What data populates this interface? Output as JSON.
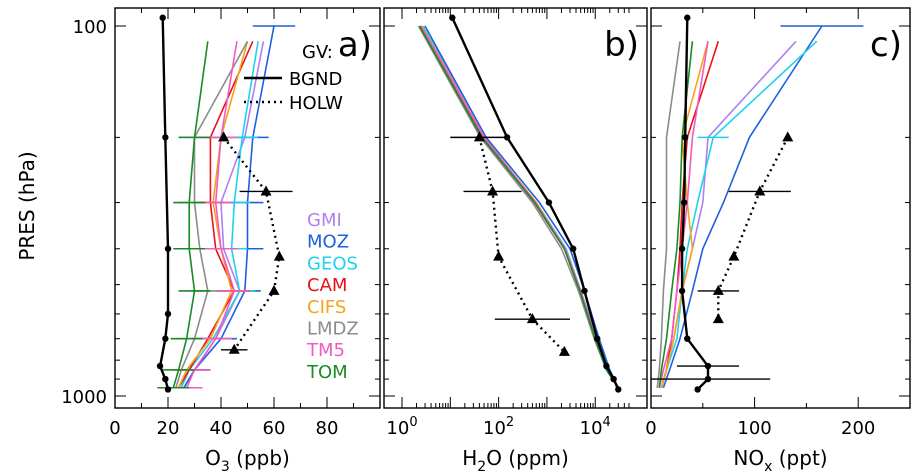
{
  "figure": {
    "ylabel": "PRES (hPa)",
    "y_ticks": [
      {
        "v": 100,
        "label": "100"
      },
      {
        "v": 1000,
        "label": "1000"
      }
    ],
    "ylim": [
      1000,
      100
    ],
    "y_scale": "log",
    "gv_label": "GV:",
    "line_legend": [
      {
        "label": "BGND",
        "style": "solid"
      },
      {
        "label": "HOLW",
        "style": "dotted"
      }
    ],
    "model_legend": [
      {
        "name": "GMI",
        "color": "#b27ff0"
      },
      {
        "name": "MOZ",
        "color": "#1f5fe0"
      },
      {
        "name": "GEOS",
        "color": "#1ed2ee"
      },
      {
        "name": "CAM",
        "color": "#e8121e"
      },
      {
        "name": "CIFS",
        "color": "#f6a21a"
      },
      {
        "name": "LMDZ",
        "color": "#8c8c8c"
      },
      {
        "name": "TM5",
        "color": "#f25bbd"
      },
      {
        "name": "TOM",
        "color": "#1a8a26"
      }
    ]
  },
  "chart_data": [
    {
      "type": "line",
      "panel_label": "a)",
      "xlabel_parts": [
        "O",
        "3",
        " (ppb)"
      ],
      "xlim": [
        0,
        100
      ],
      "x_scale": "linear",
      "x_ticks": [
        {
          "v": 0,
          "label": "0"
        },
        {
          "v": 20,
          "label": "20"
        },
        {
          "v": 40,
          "label": "40"
        },
        {
          "v": 60,
          "label": "60"
        },
        {
          "v": 80,
          "label": "80"
        }
      ],
      "x_minor": [
        10,
        30,
        50,
        70,
        90
      ],
      "gv_bgnd": {
        "pres": [
          95,
          200,
          400,
          600,
          700,
          830,
          900,
          960
        ],
        "x": [
          18,
          19,
          20,
          20,
          19,
          17,
          19,
          20
        ]
      },
      "gv_holw": {
        "pres": [
          200,
          280,
          420,
          520,
          750
        ],
        "x": [
          41,
          57,
          62,
          60,
          45
        ],
        "err": [
          0,
          10,
          0,
          0,
          5
        ]
      },
      "series": [
        {
          "name": "GMI",
          "color": "#b27ff0",
          "pres": [
            110,
            200,
            300,
            400,
            520,
            700,
            850,
            950
          ],
          "x": [
            56,
            49,
            40,
            41,
            47,
            38,
            30,
            26
          ],
          "err": [
            0,
            6,
            6,
            6,
            6,
            6,
            6,
            6
          ]
        },
        {
          "name": "MOZ",
          "color": "#1f5fe0",
          "pres": [
            100,
            200,
            300,
            400,
            520,
            700,
            850,
            950
          ],
          "x": [
            60,
            52,
            50,
            50,
            49,
            40,
            30,
            26
          ],
          "err": [
            8,
            6,
            6,
            6,
            6,
            6,
            6,
            6
          ]
        },
        {
          "name": "GEOS",
          "color": "#1ed2ee",
          "pres": [
            110,
            200,
            300,
            400,
            520,
            700,
            850,
            950
          ],
          "x": [
            54,
            48,
            45,
            44,
            47,
            37,
            28,
            25
          ],
          "err": [
            0,
            6,
            6,
            6,
            6,
            6,
            6,
            6
          ]
        },
        {
          "name": "CAM",
          "color": "#e8121e",
          "pres": [
            110,
            200,
            300,
            400,
            520,
            700,
            850,
            950
          ],
          "x": [
            52,
            36,
            36,
            38,
            45,
            35,
            28,
            24
          ],
          "err": [
            0,
            6,
            6,
            6,
            6,
            6,
            6,
            6
          ]
        },
        {
          "name": "CIFS",
          "color": "#f6a21a",
          "pres": [
            110,
            200,
            300,
            400,
            520,
            700,
            850,
            950
          ],
          "x": [
            50,
            40,
            37,
            40,
            44,
            36,
            27,
            24
          ],
          "err": [
            0,
            6,
            6,
            6,
            6,
            6,
            6,
            6
          ]
        },
        {
          "name": "LMDZ",
          "color": "#8c8c8c",
          "pres": [
            110,
            200,
            300,
            400,
            520,
            700,
            850,
            950
          ],
          "x": [
            50,
            30,
            30,
            32,
            35,
            30,
            25,
            23
          ],
          "err": [
            0,
            6,
            6,
            6,
            6,
            6,
            6,
            6
          ]
        },
        {
          "name": "TM5",
          "color": "#f25bbd",
          "pres": [
            110,
            200,
            300,
            400,
            520,
            700,
            850,
            950
          ],
          "x": [
            46,
            40,
            38,
            40,
            45,
            38,
            30,
            27
          ],
          "err": [
            0,
            6,
            6,
            6,
            6,
            6,
            6,
            6
          ]
        },
        {
          "name": "TOM",
          "color": "#1a8a26",
          "pres": [
            110,
            200,
            300,
            400,
            520,
            700,
            850,
            950
          ],
          "x": [
            35,
            30,
            28,
            28,
            30,
            27,
            24,
            22
          ],
          "err": [
            0,
            6,
            6,
            6,
            6,
            6,
            6,
            6
          ]
        }
      ]
    },
    {
      "type": "line",
      "panel_label": "b)",
      "xlabel_parts": [
        "H",
        "2",
        "O (ppm)"
      ],
      "xlim": [
        1,
        50000
      ],
      "x_scale": "log",
      "x_ticks": [
        {
          "v": 1,
          "base": "10",
          "exp": "0"
        },
        {
          "v": 100,
          "base": "10",
          "exp": "2"
        },
        {
          "v": 10000,
          "base": "10",
          "exp": "4"
        }
      ],
      "gv_bgnd": {
        "pres": [
          95,
          200,
          300,
          400,
          520,
          700,
          830,
          900,
          960
        ],
        "x": [
          11,
          150,
          1100,
          3500,
          6000,
          11000,
          17000,
          24000,
          30000
        ]
      },
      "gv_holw": {
        "pres": [
          200,
          280,
          420,
          620,
          760
        ],
        "x": [
          40,
          75,
          100,
          500,
          2300
        ],
        "err": [
          0.6,
          0.6,
          0,
          1,
          0
        ]
      },
      "series": [
        {
          "name": "GMI",
          "color": "#b27ff0",
          "pres": [
            100,
            200,
            300,
            400,
            520,
            700,
            850,
            950
          ],
          "x": [
            2.8,
            50,
            600,
            2500,
            5000,
            10000,
            18000,
            30000
          ]
        },
        {
          "name": "MOZ",
          "color": "#1f5fe0",
          "pres": [
            100,
            200,
            300,
            400,
            520,
            700,
            850,
            950
          ],
          "x": [
            3,
            55,
            700,
            3000,
            6000,
            12000,
            20000,
            30000
          ]
        },
        {
          "name": "GEOS",
          "color": "#1ed2ee",
          "pres": [
            100,
            200,
            300,
            400,
            520,
            700,
            850,
            950
          ],
          "x": [
            2.8,
            45,
            600,
            2500,
            5000,
            11000,
            19000,
            30000
          ]
        },
        {
          "name": "CAM",
          "color": "#e8121e",
          "pres": [
            100,
            200,
            300,
            400,
            520,
            700,
            850,
            950
          ],
          "x": [
            2.4,
            48,
            550,
            2300,
            4800,
            10000,
            18000,
            30000
          ]
        },
        {
          "name": "CIFS",
          "color": "#f6a21a",
          "pres": [
            100,
            200,
            300,
            400,
            520,
            700,
            850,
            950
          ],
          "x": [
            2.6,
            50,
            600,
            2400,
            5000,
            10000,
            18000,
            30000
          ]
        },
        {
          "name": "LMDZ",
          "color": "#8c8c8c",
          "pres": [
            100,
            200,
            300,
            400,
            520,
            700,
            850,
            950
          ],
          "x": [
            2.2,
            42,
            500,
            2000,
            4500,
            9500,
            17000,
            30000
          ]
        },
        {
          "name": "TM5",
          "color": "#f25bbd",
          "pres": [
            100,
            200,
            300,
            400,
            520,
            700,
            850,
            950
          ],
          "x": [
            2.5,
            50,
            580,
            2400,
            5000,
            10500,
            18000,
            30000
          ]
        },
        {
          "name": "TOM",
          "color": "#1a8a26",
          "pres": [
            100,
            200,
            300,
            400,
            520,
            700,
            850,
            950
          ],
          "x": [
            2.3,
            45,
            560,
            2300,
            4800,
            10000,
            17000,
            30000
          ]
        }
      ]
    },
    {
      "type": "line",
      "panel_label": "c)",
      "xlabel_parts": [
        "NO",
        "x",
        " (ppt)"
      ],
      "xlim": [
        0,
        250
      ],
      "x_scale": "linear",
      "x_ticks": [
        {
          "v": 0,
          "label": "0"
        },
        {
          "v": 100,
          "label": "100"
        },
        {
          "v": 200,
          "label": "200"
        }
      ],
      "x_minor": [
        50,
        150
      ],
      "gv_bgnd": {
        "pres": [
          95,
          200,
          300,
          400,
          520,
          700,
          830,
          900,
          960
        ],
        "x": [
          35,
          33,
          32,
          30,
          30,
          35,
          55,
          55,
          45
        ],
        "err": [
          0,
          0,
          0,
          0,
          0,
          0,
          30,
          60,
          0
        ]
      },
      "gv_holw": {
        "pres": [
          200,
          280,
          420,
          520,
          620
        ],
        "x": [
          132,
          105,
          80,
          65,
          65
        ],
        "err": [
          0,
          30,
          0,
          20,
          0
        ]
      },
      "series": [
        {
          "name": "GMI",
          "color": "#b27ff0",
          "pres": [
            110,
            200,
            300,
            400,
            520,
            700,
            850,
            950
          ],
          "x": [
            140,
            55,
            50,
            40,
            30,
            22,
            15,
            10
          ]
        },
        {
          "name": "MOZ",
          "color": "#1f5fe0",
          "pres": [
            100,
            200,
            300,
            400,
            520,
            700,
            850,
            950
          ],
          "x": [
            165,
            95,
            70,
            50,
            40,
            28,
            18,
            12
          ],
          "err": [
            40,
            0,
            0,
            0,
            0,
            0,
            0,
            0
          ]
        },
        {
          "name": "GEOS",
          "color": "#1ed2ee",
          "pres": [
            110,
            200,
            300,
            400,
            520,
            700,
            850,
            950
          ],
          "x": [
            160,
            60,
            45,
            35,
            30,
            25,
            15,
            10
          ],
          "err": [
            0,
            15,
            0,
            0,
            0,
            0,
            0,
            0
          ]
        },
        {
          "name": "CAM",
          "color": "#e8121e",
          "pres": [
            110,
            200,
            300,
            400,
            520,
            700,
            850,
            950
          ],
          "x": [
            65,
            35,
            30,
            28,
            25,
            20,
            15,
            10
          ]
        },
        {
          "name": "CIFS",
          "color": "#f6a21a",
          "pres": [
            110,
            200,
            300,
            400,
            520,
            700,
            850,
            950
          ],
          "x": [
            55,
            30,
            35,
            40,
            30,
            22,
            15,
            10
          ]
        },
        {
          "name": "LMDZ",
          "color": "#8c8c8c",
          "pres": [
            110,
            200,
            300,
            400,
            520,
            700,
            850,
            950
          ],
          "x": [
            28,
            15,
            15,
            15,
            12,
            10,
            8,
            6
          ]
        },
        {
          "name": "TM5",
          "color": "#f25bbd",
          "pres": [
            110,
            200,
            300,
            400,
            520,
            700,
            850,
            950
          ],
          "x": [
            55,
            40,
            35,
            30,
            25,
            20,
            12,
            8
          ]
        },
        {
          "name": "TOM",
          "color": "#1a8a26",
          "pres": [
            110,
            200,
            300,
            400,
            520,
            700,
            850,
            950
          ],
          "x": [
            40,
            30,
            28,
            25,
            20,
            15,
            10,
            8
          ]
        }
      ]
    }
  ]
}
